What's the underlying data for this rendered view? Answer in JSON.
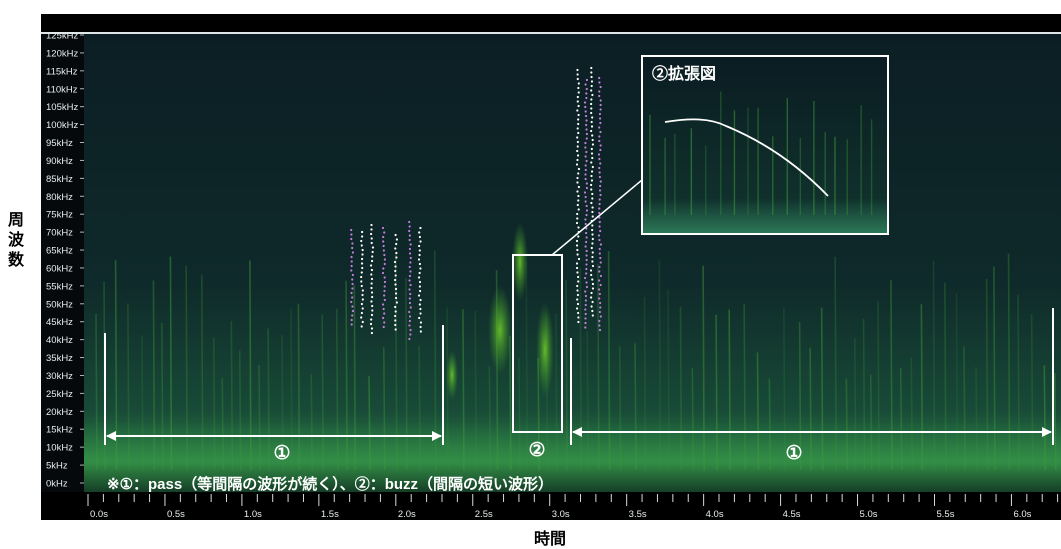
{
  "chart_data": {
    "type": "heatmap",
    "subtype": "spectrogram",
    "xlabel": "時間",
    "ylabel": "周波数",
    "xlim": [
      0.0,
      6.4
    ],
    "ylim": [
      0,
      125
    ],
    "x_unit": "s",
    "y_unit": "kHz",
    "x_ticks": [
      "0.0s",
      "0.5s",
      "1.0s",
      "1.5s",
      "2.0s",
      "2.5s",
      "3.0s",
      "3.5s",
      "4.0s",
      "4.5s",
      "5.0s",
      "5.5s",
      "6.0s"
    ],
    "y_ticks": [
      "0kHz",
      "5kHz",
      "10kHz",
      "15kHz",
      "20kHz",
      "25kHz",
      "30kHz",
      "35kHz",
      "40kHz",
      "45kHz",
      "50kHz",
      "55kHz",
      "60kHz",
      "65kHz",
      "70kHz",
      "75kHz",
      "80kHz",
      "85kHz",
      "90kHz",
      "95kHz",
      "100kHz",
      "105kHz",
      "110kHz",
      "115kHz",
      "120kHz",
      "125kHz"
    ],
    "colors": {
      "background": "#0c2226",
      "signal": "#3fa63a",
      "noise_floor": "#1f6b4a",
      "frame": "#000000",
      "annotation": "#ffffff"
    },
    "annotations": {
      "pass_label": "①",
      "buzz_label": "②",
      "inset_title": "②拡張図",
      "note": "※①：pass（等間隔の波形が続く）、②：buzz（間隔の短い波形）",
      "pass_ranges": [
        [
          0.1,
          2.34
        ],
        [
          3.2,
          6.4
        ]
      ],
      "buzz_box_range": [
        2.8,
        3.1
      ]
    }
  }
}
